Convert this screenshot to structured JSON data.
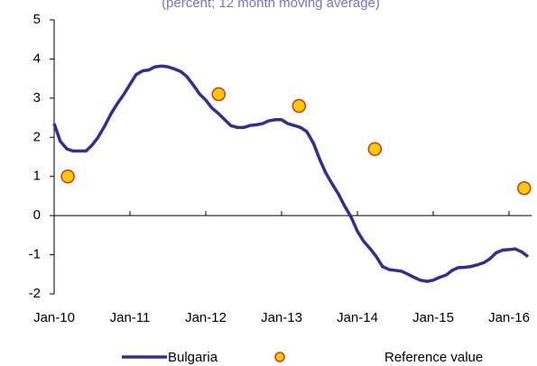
{
  "chart_data": {
    "type": "line",
    "subtitle": "(percent; 12 month moving average)",
    "series": [
      {
        "name": "Bulgaria",
        "color": "#2e3192",
        "style": "line",
        "x": [
          2010,
          2010.08,
          2010.17,
          2010.25,
          2010.33,
          2010.42,
          2010.5,
          2010.58,
          2010.67,
          2010.75,
          2010.83,
          2010.92,
          2011,
          2011.08,
          2011.17,
          2011.25,
          2011.33,
          2011.42,
          2011.5,
          2011.58,
          2011.67,
          2011.75,
          2011.83,
          2011.92,
          2012,
          2012.08,
          2012.17,
          2012.25,
          2012.33,
          2012.42,
          2012.5,
          2012.58,
          2012.67,
          2012.75,
          2012.83,
          2012.92,
          2013,
          2013.08,
          2013.17,
          2013.25,
          2013.33,
          2013.42,
          2013.5,
          2013.58,
          2013.67,
          2013.75,
          2013.83,
          2013.92,
          2014,
          2014.08,
          2014.17,
          2014.25,
          2014.33,
          2014.42,
          2014.5,
          2014.58,
          2014.67,
          2014.75,
          2014.83,
          2014.92,
          2015,
          2015.08,
          2015.17,
          2015.25,
          2015.33,
          2015.42,
          2015.5,
          2015.58,
          2015.67,
          2015.75,
          2015.83,
          2015.92,
          2016,
          2016.08,
          2016.17,
          2016.25
        ],
        "values": [
          2.35,
          1.9,
          1.7,
          1.65,
          1.65,
          1.65,
          1.8,
          2.0,
          2.3,
          2.6,
          2.85,
          3.1,
          3.35,
          3.6,
          3.7,
          3.72,
          3.8,
          3.82,
          3.8,
          3.75,
          3.68,
          3.55,
          3.35,
          3.1,
          2.95,
          2.75,
          2.6,
          2.45,
          2.3,
          2.25,
          2.25,
          2.3,
          2.32,
          2.35,
          2.42,
          2.45,
          2.45,
          2.35,
          2.3,
          2.25,
          2.15,
          1.85,
          1.45,
          1.1,
          0.8,
          0.55,
          0.25,
          -0.05,
          -0.4,
          -0.65,
          -0.85,
          -1.05,
          -1.3,
          -1.38,
          -1.4,
          -1.42,
          -1.5,
          -1.58,
          -1.65,
          -1.68,
          -1.65,
          -1.58,
          -1.52,
          -1.4,
          -1.33,
          -1.32,
          -1.3,
          -1.26,
          -1.2,
          -1.1,
          -0.95,
          -0.88,
          -0.87,
          -0.85,
          -0.93,
          -1.05
        ]
      },
      {
        "name": "Reference value",
        "color": "#ffcc00",
        "edge_color": "#e03020",
        "style": "marker",
        "x": [
          2010.18,
          2012.17,
          2013.23,
          2014.23,
          2016.2
        ],
        "values": [
          1.0,
          3.1,
          2.8,
          1.7,
          0.7
        ]
      }
    ],
    "xlim": [
      2010,
      2016.3
    ],
    "xticks": [
      {
        "value": 2010,
        "label": "Jan-10"
      },
      {
        "value": 2011,
        "label": "Jan-11"
      },
      {
        "value": 2012,
        "label": "Jan-12"
      },
      {
        "value": 2013,
        "label": "Jan-13"
      },
      {
        "value": 2014,
        "label": "Jan-14"
      },
      {
        "value": 2015,
        "label": "Jan-15"
      },
      {
        "value": 2016,
        "label": "Jan-16"
      }
    ],
    "ylim": [
      -2,
      5
    ],
    "yticks": [
      -2,
      -1,
      0,
      1,
      2,
      3,
      4,
      5
    ],
    "grid": false,
    "legend": "bottom"
  }
}
